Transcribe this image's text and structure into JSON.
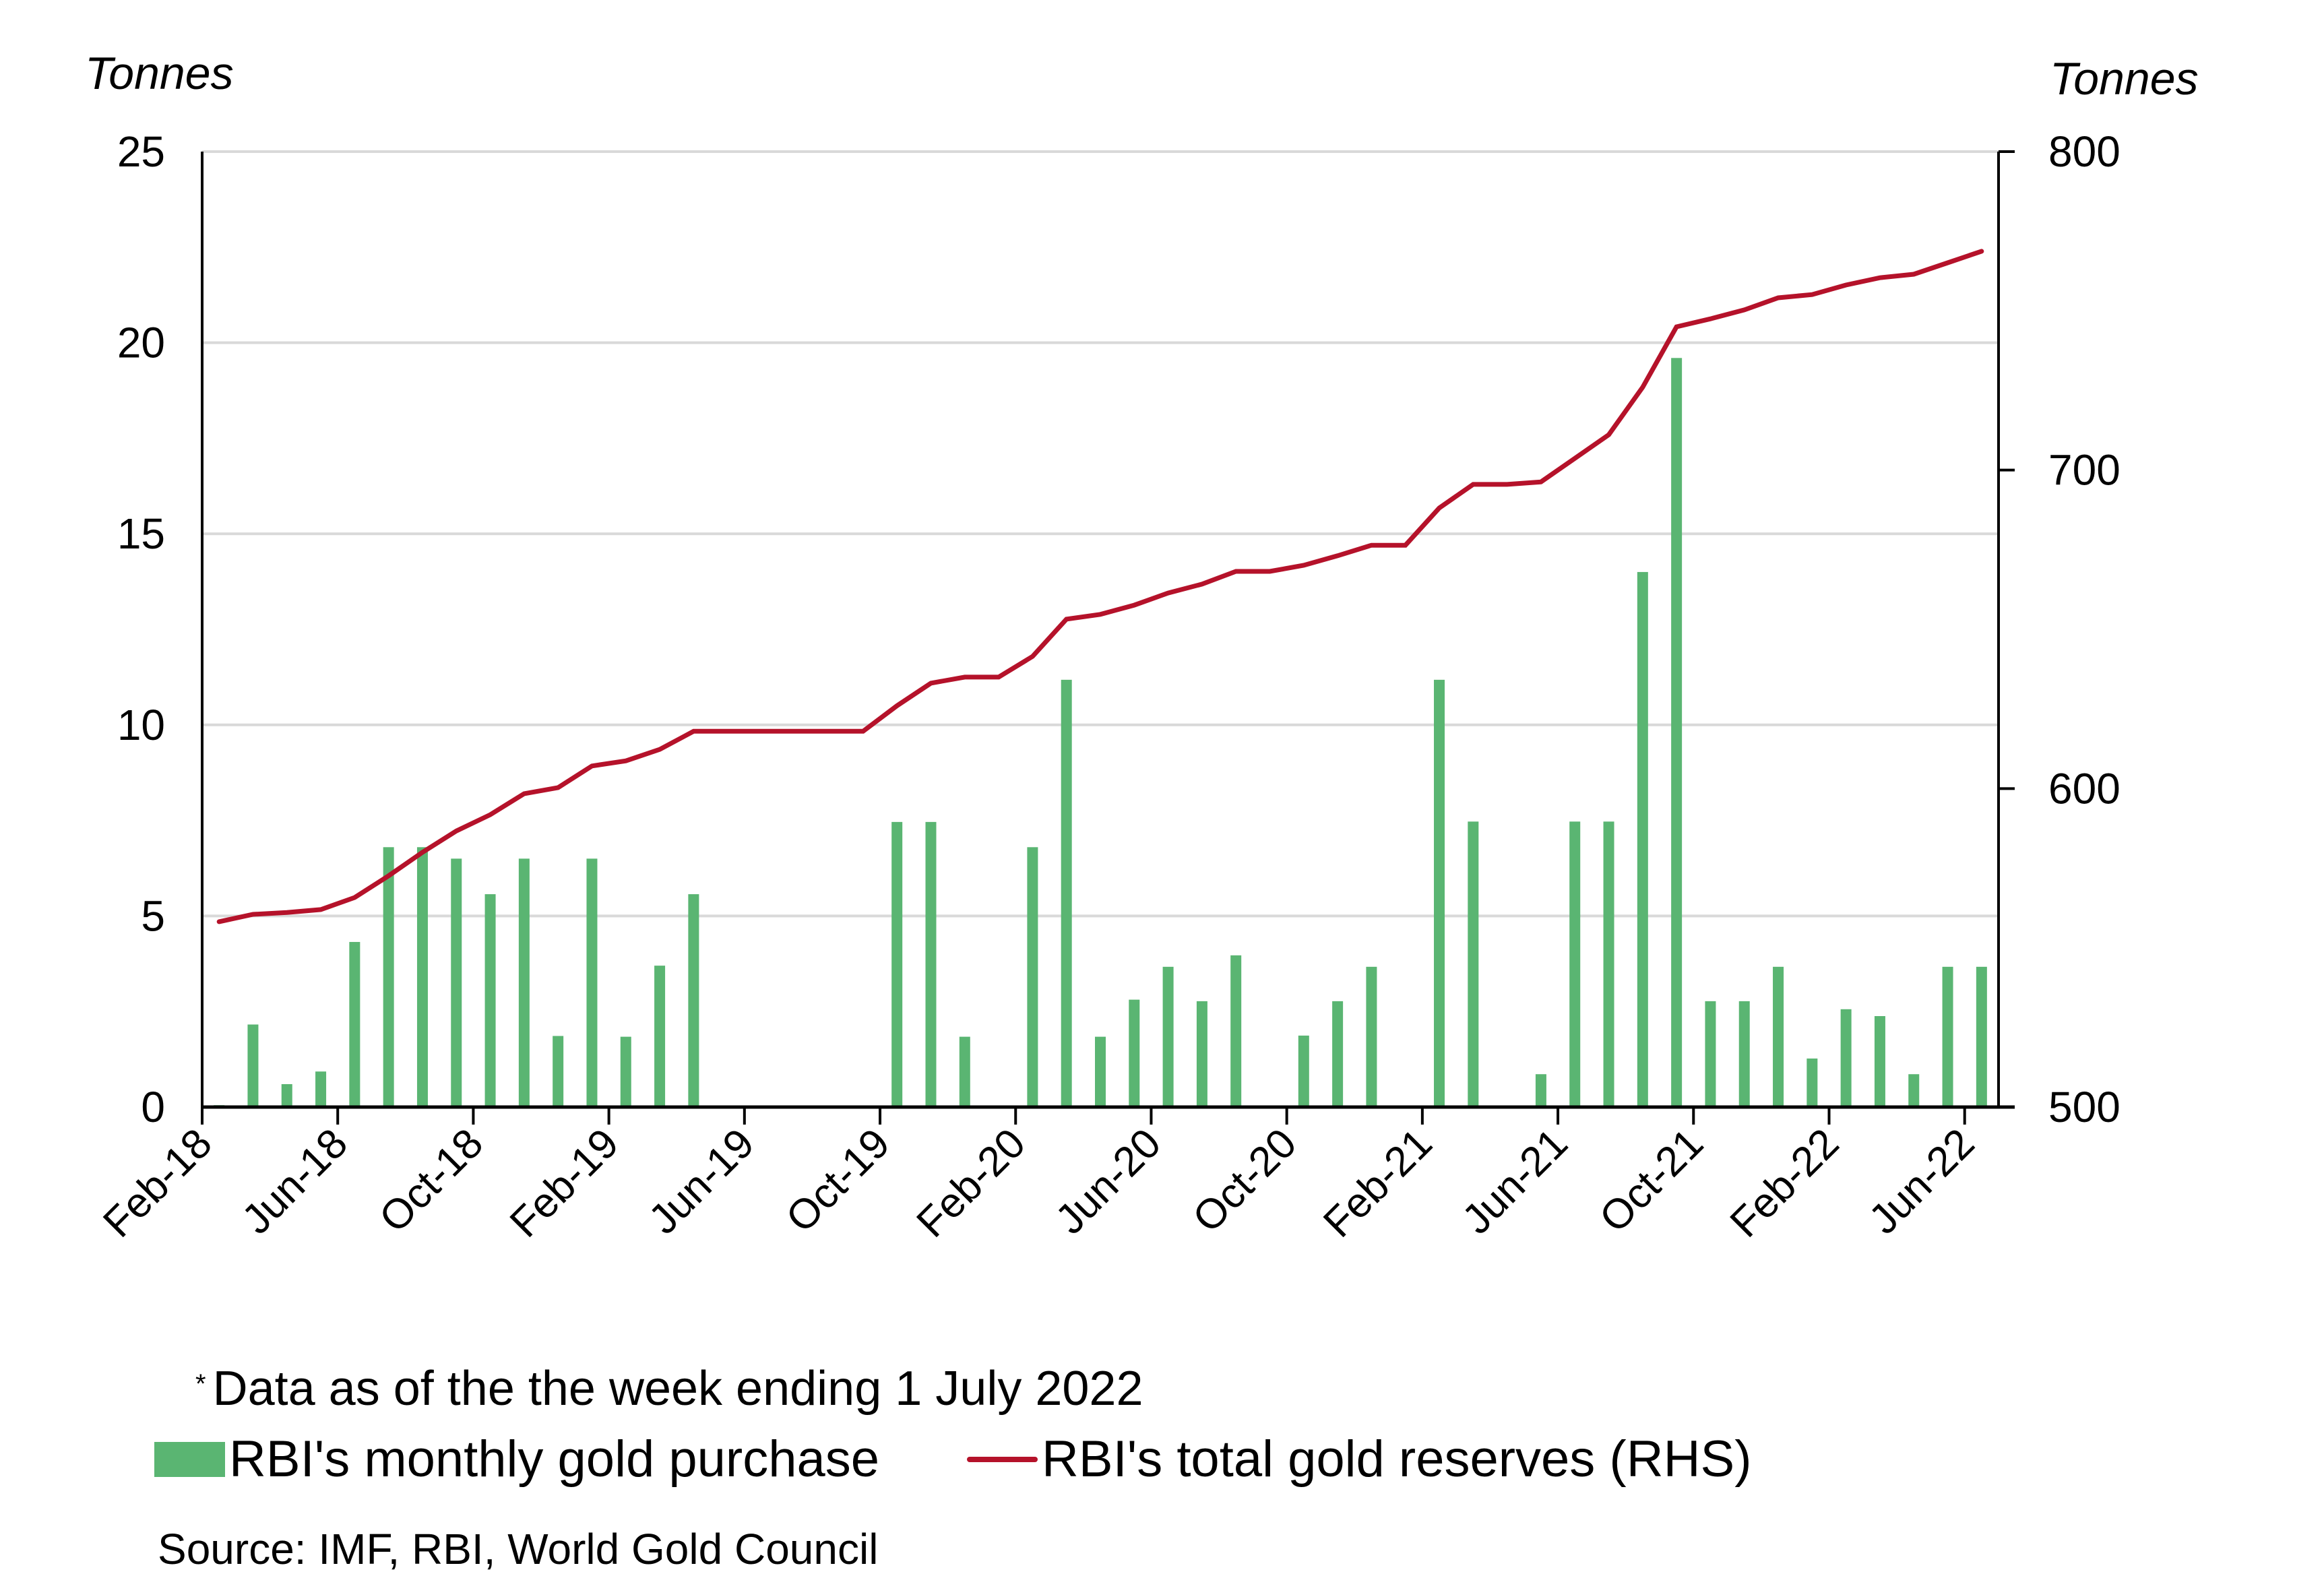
{
  "chart_data": {
    "type": "bar+line",
    "title": "",
    "left_axis": {
      "label": "Tonnes",
      "ylim": [
        0,
        25
      ],
      "ticks": [
        0,
        5,
        10,
        15,
        20,
        25
      ]
    },
    "right_axis": {
      "label": "Tonnes",
      "ylim": [
        500,
        800
      ],
      "ticks": [
        500,
        600,
        700,
        800
      ]
    },
    "x_tick_labels": [
      "Feb-18",
      "Jun-18",
      "Oct-18",
      "Feb-19",
      "Jun-19",
      "Oct-19",
      "Feb-20",
      "Jun-20",
      "Oct-20",
      "Feb-21",
      "Jun-21",
      "Oct-21",
      "Feb-22",
      "Jun-22"
    ],
    "x_tick_every_months": 4,
    "grid": true,
    "categories": [
      "Feb-18",
      "Mar-18",
      "Apr-18",
      "May-18",
      "Jun-18",
      "Jul-18",
      "Aug-18",
      "Sep-18",
      "Oct-18",
      "Nov-18",
      "Dec-18",
      "Jan-19",
      "Feb-19",
      "Mar-19",
      "Apr-19",
      "May-19",
      "Jun-19",
      "Jul-19",
      "Aug-19",
      "Sep-19",
      "Oct-19",
      "Nov-19",
      "Dec-19",
      "Jan-20",
      "Feb-20",
      "Mar-20",
      "Apr-20",
      "May-20",
      "Jun-20",
      "Jul-20",
      "Aug-20",
      "Sep-20",
      "Oct-20",
      "Nov-20",
      "Dec-20",
      "Jan-21",
      "Feb-21",
      "Mar-21",
      "Apr-21",
      "May-21",
      "Jun-21",
      "Jul-21",
      "Aug-21",
      "Sep-21",
      "Oct-21",
      "Nov-21",
      "Dec-21",
      "Jan-22",
      "Feb-22",
      "Mar-22",
      "Apr-22",
      "May-22",
      "Jun-22"
    ],
    "series": [
      {
        "name": "RBI's monthly gold purchase",
        "type": "bar",
        "axis": "left",
        "color": "#5ab572",
        "values": [
          0.05,
          2.16,
          0.6,
          0.93,
          4.32,
          6.8,
          6.8,
          6.5,
          5.57,
          6.5,
          1.86,
          6.5,
          1.84,
          3.7,
          5.57,
          0,
          0,
          0,
          0,
          0,
          7.46,
          7.46,
          1.84,
          0,
          6.8,
          11.18,
          1.84,
          2.81,
          3.67,
          2.77,
          3.97,
          0,
          1.87,
          2.77,
          3.67,
          0,
          11.18,
          7.47,
          0,
          0.86,
          7.47,
          7.47,
          14.0,
          19.6,
          2.77,
          2.77,
          3.67,
          1.27,
          2.56,
          2.38,
          0.86,
          3.67,
          3.67
        ]
      },
      {
        "name": "RBI's total gold reserves (RHS)",
        "type": "line",
        "axis": "right",
        "color": "#b5122a",
        "values": [
          558.2,
          560.5,
          561.1,
          562.0,
          565.8,
          572.6,
          580.0,
          586.7,
          591.8,
          598.4,
          600.3,
          607.1,
          608.7,
          612.3,
          618.0,
          618.0,
          618.0,
          618.0,
          618.0,
          618.0,
          626.0,
          633.1,
          635.0,
          635.0,
          641.5,
          653.2,
          654.7,
          657.6,
          661.4,
          664.2,
          668.2,
          668.2,
          670.1,
          673.1,
          676.4,
          676.4,
          688.1,
          695.5,
          695.5,
          696.3,
          703.7,
          711.1,
          726.0,
          745.0,
          747.5,
          750.3,
          754.1,
          755.1,
          758.1,
          760.4,
          761.5,
          765.1,
          768.7
        ]
      }
    ],
    "legend_position": "bottom-left"
  },
  "labels": {
    "left_unit": "Tonnes",
    "right_unit": "Tonnes",
    "note_marker": "*",
    "note": "Data as of the the week ending 1 July 2022",
    "legend_bar": "RBI's monthly gold purchase",
    "legend_line": "RBI's total gold reserves (RHS)",
    "source": "Source: IMF, RBI, World Gold Council"
  },
  "colors": {
    "bar": "#5ab572",
    "line": "#b5122a",
    "grid": "#d9d9d9",
    "axis": "#000000"
  }
}
